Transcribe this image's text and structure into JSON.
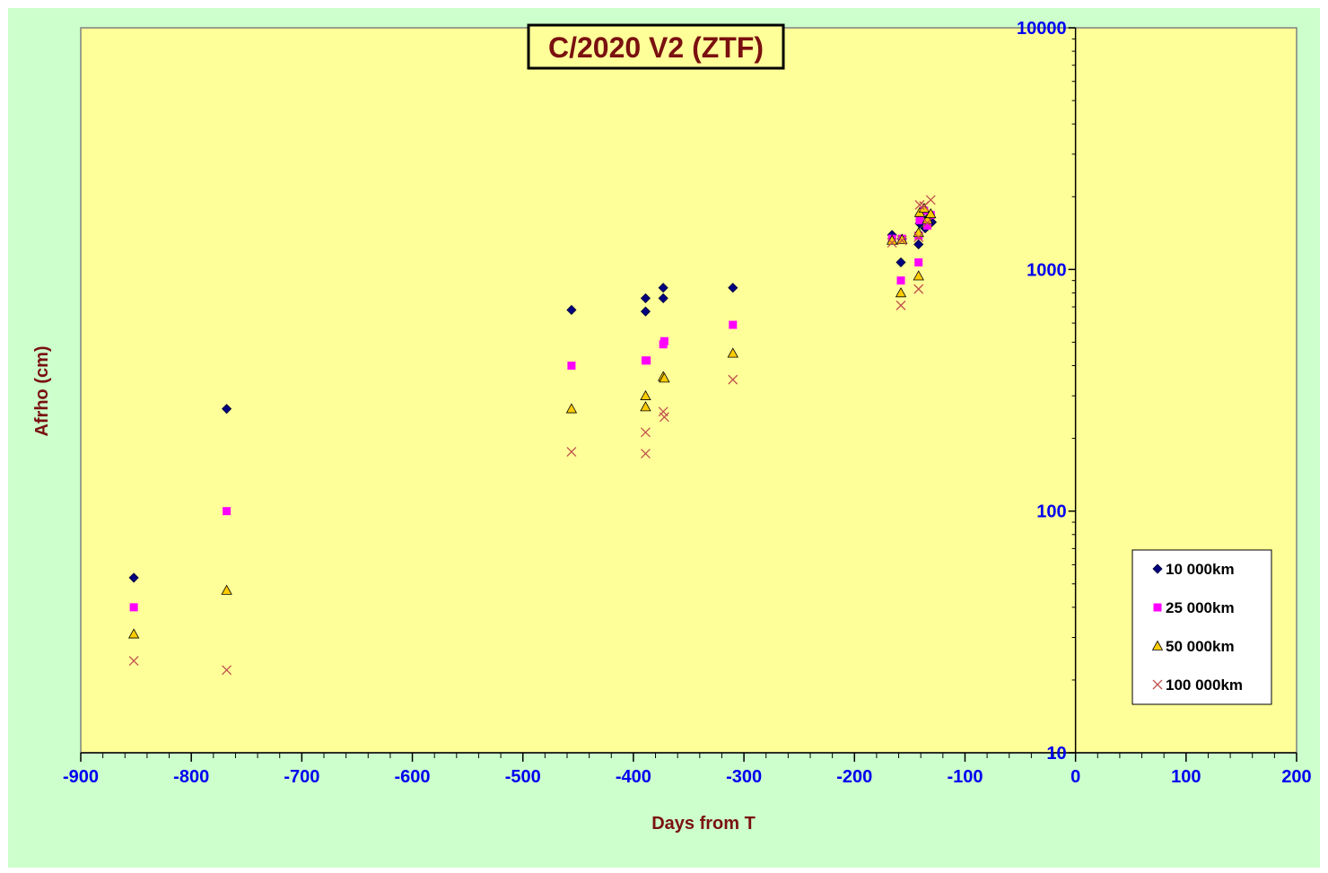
{
  "chart_data": {
    "type": "scatter",
    "title": "C/2020 V2 (ZTF)",
    "xlabel": "Days from T",
    "ylabel": "Afrho (cm)",
    "xlim": [
      -900,
      200
    ],
    "ylim": [
      10,
      10000
    ],
    "y_scale": "log",
    "x_ticks": [
      "-900",
      "-800",
      "-700",
      "-600",
      "-500",
      "-400",
      "-300",
      "-200",
      "-100",
      "0",
      "100",
      "200"
    ],
    "y_ticks": [
      "10",
      "100",
      "1000",
      "10000"
    ],
    "y_axis_at_x": 0,
    "legend_position": "bottom-right",
    "grid": false,
    "colors": {
      "outer_background": "#ccffcc",
      "plot_background": "#ffff99",
      "10000km": "#000080",
      "25000km": "#ff00ff",
      "50000km": "#ffcc00",
      "100000km": "#c0504d"
    },
    "series": [
      {
        "name": "10 000km",
        "marker": "diamond",
        "points": [
          [
            -852,
            53
          ],
          [
            -768,
            265
          ],
          [
            -456,
            680
          ],
          [
            -389,
            760
          ],
          [
            -389,
            670
          ],
          [
            -373,
            840
          ],
          [
            -373,
            760
          ],
          [
            -310,
            840
          ],
          [
            -166,
            1390
          ],
          [
            -158,
            1070
          ],
          [
            -157,
            1340
          ],
          [
            -142,
            1270
          ],
          [
            -141,
            1550
          ],
          [
            -140,
            1700
          ],
          [
            -136,
            1480
          ],
          [
            -133,
            1640
          ],
          [
            -130,
            1570
          ]
        ]
      },
      {
        "name": "25 000km",
        "marker": "square",
        "points": [
          [
            -852,
            40
          ],
          [
            -768,
            100
          ],
          [
            -456,
            400
          ],
          [
            -389,
            420
          ],
          [
            -388,
            420
          ],
          [
            -373,
            490
          ],
          [
            -372,
            505
          ],
          [
            -310,
            590
          ],
          [
            -166,
            1340
          ],
          [
            -158,
            900
          ],
          [
            -157,
            1340
          ],
          [
            -142,
            1070
          ],
          [
            -142,
            1380
          ],
          [
            -141,
            1600
          ],
          [
            -137,
            1750
          ],
          [
            -134,
            1520
          ],
          [
            -131,
            1680
          ]
        ]
      },
      {
        "name": "50 000km",
        "marker": "triangle",
        "points": [
          [
            -852,
            31
          ],
          [
            -768,
            47
          ],
          [
            -456,
            265
          ],
          [
            -389,
            300
          ],
          [
            -389,
            270
          ],
          [
            -373,
            360
          ],
          [
            -372,
            355
          ],
          [
            -310,
            450
          ],
          [
            -166,
            1320
          ],
          [
            -158,
            800
          ],
          [
            -157,
            1330
          ],
          [
            -142,
            940
          ],
          [
            -142,
            1420
          ],
          [
            -141,
            1720
          ],
          [
            -137,
            1790
          ],
          [
            -134,
            1610
          ],
          [
            -131,
            1700
          ]
        ]
      },
      {
        "name": "100 000km",
        "marker": "x",
        "points": [
          [
            -852,
            24
          ],
          [
            -768,
            22
          ],
          [
            -456,
            176
          ],
          [
            -389,
            173
          ],
          [
            -389,
            212
          ],
          [
            -373,
            258
          ],
          [
            -372,
            245
          ],
          [
            -310,
            350
          ],
          [
            -166,
            1290
          ],
          [
            -158,
            710
          ],
          [
            -157,
            1320
          ],
          [
            -142,
            830
          ],
          [
            -142,
            1360
          ],
          [
            -141,
            1850
          ],
          [
            -137,
            1830
          ],
          [
            -134,
            1560
          ],
          [
            -131,
            1940
          ]
        ]
      }
    ]
  }
}
